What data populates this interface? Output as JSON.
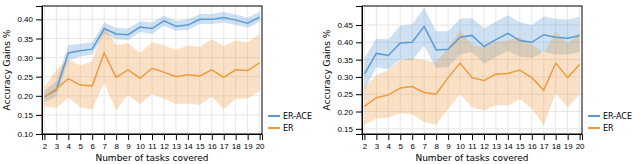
{
  "chart_data": [
    {
      "type": "line",
      "x": [
        2,
        3,
        4,
        5,
        6,
        7,
        8,
        9,
        10,
        11,
        12,
        13,
        14,
        15,
        16,
        17,
        18,
        19,
        20
      ],
      "xlim": [
        1.8,
        20.2
      ],
      "xticks": [
        2,
        3,
        4,
        5,
        6,
        7,
        8,
        9,
        10,
        11,
        12,
        13,
        14,
        15,
        16,
        17,
        18,
        19,
        20
      ],
      "ylim": [
        0.1,
        0.435
      ],
      "yticks": [
        {
          "value": 0.1,
          "label": "0.10"
        },
        0.15,
        {
          "value": 0.2,
          "label": "0.20"
        },
        0.25,
        {
          "value": 0.3,
          "label": "0.30"
        },
        0.35,
        {
          "value": 0.4,
          "label": "0.40"
        }
      ],
      "xlabel": "Number of tasks covered",
      "ylabel": "Accuracy Gains %",
      "grid": true,
      "legend": "lower right",
      "series": [
        {
          "name": "ER-ACE",
          "color": "#5b9bd5",
          "values": [
            0.198,
            0.215,
            0.312,
            0.318,
            0.322,
            0.376,
            0.362,
            0.36,
            0.38,
            0.376,
            0.396,
            0.382,
            0.385,
            0.4,
            0.4,
            0.405,
            0.398,
            0.39,
            0.406
          ],
          "lower": [
            0.183,
            0.198,
            0.292,
            0.303,
            0.308,
            0.362,
            0.348,
            0.346,
            0.367,
            0.362,
            0.383,
            0.37,
            0.372,
            0.388,
            0.388,
            0.392,
            0.385,
            0.378,
            0.393
          ],
          "upper": [
            0.213,
            0.238,
            0.332,
            0.336,
            0.34,
            0.392,
            0.378,
            0.376,
            0.395,
            0.392,
            0.41,
            0.396,
            0.4,
            0.414,
            0.414,
            0.42,
            0.413,
            0.404,
            0.42
          ]
        },
        {
          "name": "ER",
          "color": "#ed9b3f",
          "values": [
            0.197,
            0.218,
            0.245,
            0.228,
            0.226,
            0.312,
            0.248,
            0.268,
            0.246,
            0.272,
            0.262,
            0.25,
            0.255,
            0.252,
            0.268,
            0.248,
            0.268,
            0.266,
            0.286
          ],
          "lower": [
            0.172,
            0.168,
            0.195,
            0.17,
            0.165,
            0.234,
            0.162,
            0.202,
            0.178,
            0.205,
            0.192,
            0.178,
            0.18,
            0.176,
            0.198,
            0.165,
            0.192,
            0.193,
            0.212
          ],
          "upper": [
            0.222,
            0.268,
            0.295,
            0.28,
            0.29,
            0.382,
            0.332,
            0.338,
            0.312,
            0.34,
            0.332,
            0.32,
            0.332,
            0.328,
            0.348,
            0.33,
            0.345,
            0.34,
            0.362
          ]
        }
      ]
    },
    {
      "type": "line",
      "x": [
        2,
        3,
        4,
        5,
        6,
        7,
        8,
        9,
        10,
        11,
        12,
        13,
        14,
        15,
        16,
        17,
        18,
        19,
        20
      ],
      "xlim": [
        1.8,
        20.2
      ],
      "xticks": [
        2,
        3,
        4,
        5,
        6,
        7,
        8,
        9,
        10,
        11,
        12,
        13,
        14,
        15,
        16,
        17,
        18,
        19,
        20
      ],
      "ylim": [
        0.135,
        0.505
      ],
      "yticks": [
        0.15,
        {
          "value": 0.2,
          "label": "0.20"
        },
        0.25,
        {
          "value": 0.3,
          "label": "0.30"
        },
        0.35,
        {
          "value": 0.4,
          "label": "0.40"
        },
        0.45
      ],
      "xlabel": "Number of tasks covered",
      "ylabel": "Accuracy Gains %",
      "grid": true,
      "legend": "lower right",
      "series": [
        {
          "name": "ER-ACE",
          "color": "#5b9bd5",
          "values": [
            0.308,
            0.368,
            0.362,
            0.398,
            0.4,
            0.446,
            0.378,
            0.38,
            0.415,
            0.42,
            0.388,
            0.408,
            0.426,
            0.405,
            0.4,
            0.422,
            0.415,
            0.412,
            0.42
          ],
          "lower": [
            0.262,
            0.328,
            0.322,
            0.35,
            0.348,
            0.39,
            0.326,
            0.328,
            0.365,
            0.372,
            0.338,
            0.358,
            0.375,
            0.358,
            0.355,
            0.372,
            0.365,
            0.365,
            0.372
          ],
          "upper": [
            0.355,
            0.41,
            0.408,
            0.448,
            0.452,
            0.5,
            0.432,
            0.432,
            0.468,
            0.47,
            0.44,
            0.46,
            0.478,
            0.458,
            0.45,
            0.475,
            0.468,
            0.465,
            0.475
          ]
        },
        {
          "name": "ER",
          "color": "#ed9b3f",
          "values": [
            0.215,
            0.24,
            0.248,
            0.268,
            0.272,
            0.255,
            0.25,
            0.298,
            0.34,
            0.298,
            0.29,
            0.308,
            0.31,
            0.32,
            0.298,
            0.262,
            0.34,
            0.298,
            0.336
          ],
          "lower": [
            0.162,
            0.18,
            0.182,
            0.195,
            0.192,
            0.17,
            0.162,
            0.208,
            0.25,
            0.212,
            0.202,
            0.218,
            0.218,
            0.236,
            0.208,
            0.16,
            0.252,
            0.212,
            0.25
          ],
          "upper": [
            0.27,
            0.305,
            0.32,
            0.348,
            0.355,
            0.348,
            0.342,
            0.385,
            0.435,
            0.392,
            0.385,
            0.402,
            0.405,
            0.415,
            0.395,
            0.368,
            0.432,
            0.395,
            0.428
          ]
        }
      ]
    }
  ]
}
